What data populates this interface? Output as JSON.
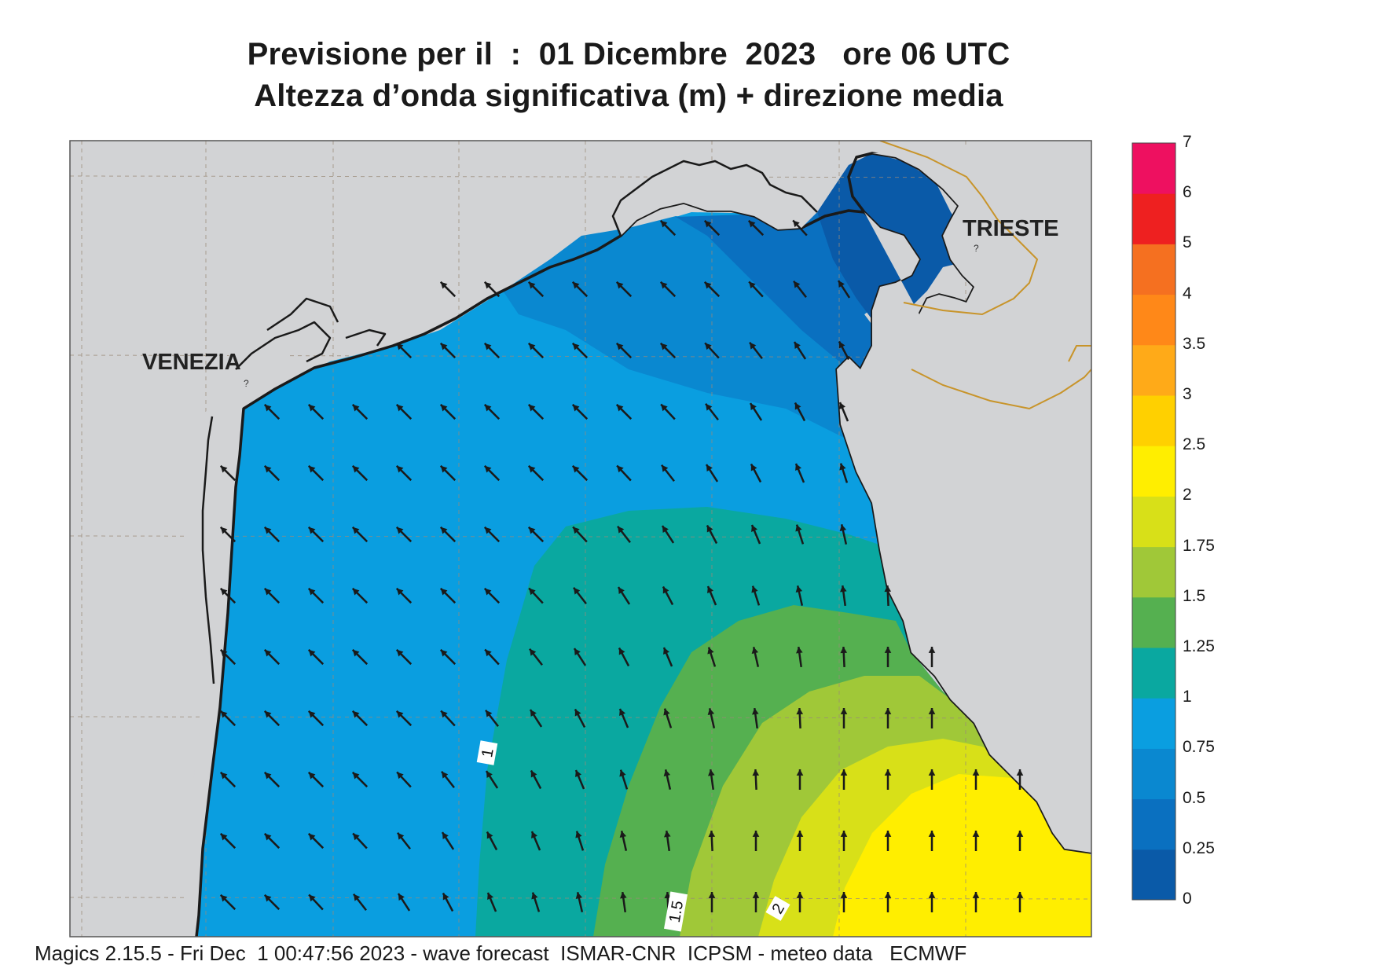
{
  "title": {
    "line1": "Previsione per il  :  01 Dicembre  2023   ore 06 UTC",
    "line2": "Altezza d’onda significativa (m) + direzione media"
  },
  "cities": [
    {
      "name": "VENEZIA"
    },
    {
      "name": "TRIESTE"
    }
  ],
  "contour_labels": [
    "1",
    "1.5",
    "2"
  ],
  "colorbar": {
    "ticks": [
      "7",
      "6",
      "5",
      "4",
      "3.5",
      "3",
      "2.5",
      "2",
      "1.75",
      "1.5",
      "1.25",
      "1",
      "0.75",
      "0.5",
      "0.25",
      "0"
    ],
    "colors": [
      "#0a5aa8",
      "#0a70c0",
      "#0a88d0",
      "#0a9ee0",
      "#0aa8a0",
      "#55b050",
      "#a0c838",
      "#d8e018",
      "#ffee00",
      "#ffd000",
      "#ffaa18",
      "#ff8818",
      "#f57020",
      "#ee2020",
      "#ee1060"
    ]
  },
  "palette": {
    "land": "#d2d3d5",
    "coast": "#1a1a1a",
    "border": "#c8942a",
    "arrow": "#1a1a1a",
    "grid": "#9a8a78"
  },
  "footer": "Magics 2.15.5 - Fri Dec  1 00:47:56 2023 - wave forecast  ISMAR-CNR  ICPSM - meteo data   ECMWF"
}
